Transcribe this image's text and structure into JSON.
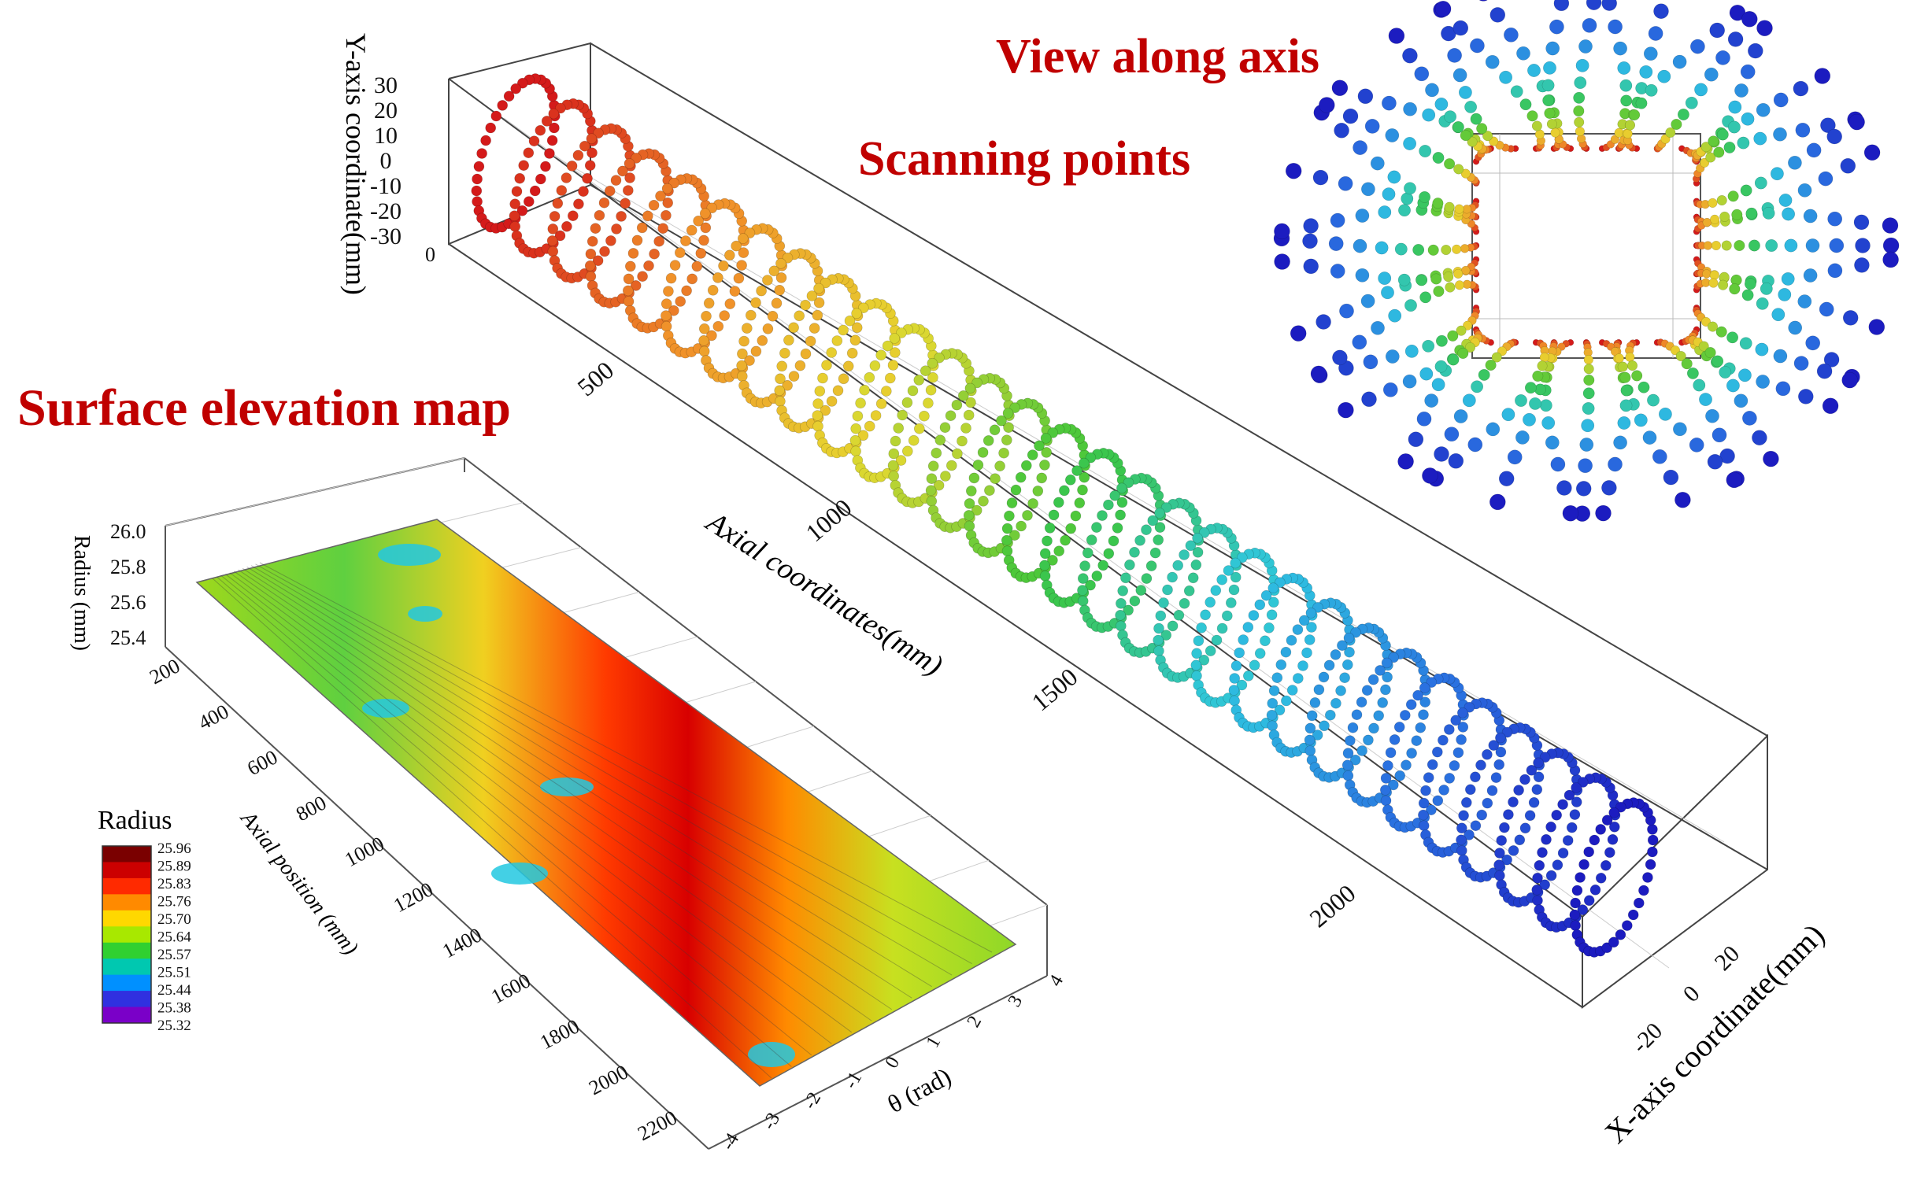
{
  "headings": {
    "view_along_axis": "View along axis",
    "scanning_points": "Scanning points",
    "surface_elevation_map": "Surface elevation map"
  },
  "scatter3d": {
    "y_axis_label": "Y-axis coordinate(mm)",
    "y_ticks": [
      "30",
      "20",
      "10",
      "0",
      "-10",
      "-20",
      "-30"
    ],
    "axial_label": "Axial coordinates(mm)",
    "axial_ticks": [
      "500",
      "1000",
      "1500",
      "2000"
    ],
    "x_axis_label": "X-axis coordinate(mm)",
    "x_ticks": [
      "20",
      "0",
      "-20"
    ],
    "zero_tick": "0",
    "color_scale": [
      "#d41a1a",
      "#f0902a",
      "#e6d830",
      "#3cc63c",
      "#2fc6e0",
      "#2a6ee0",
      "#1c1cc0"
    ]
  },
  "surface": {
    "radius_label": "Radius (mm)",
    "radius_ticks": [
      "26.0",
      "25.8",
      "25.6",
      "25.4"
    ],
    "axial_label": "Axial position (mm)",
    "axial_ticks": [
      "200",
      "400",
      "600",
      "800",
      "1000",
      "1200",
      "1400",
      "1600",
      "1800",
      "2000",
      "2200"
    ],
    "theta_label": "θ (rad)",
    "theta_ticks": [
      "4",
      "3",
      "2",
      "1",
      "0",
      "-1",
      "-2",
      "-3",
      "-4"
    ]
  },
  "legend": {
    "title": "Radius",
    "values": [
      "25.96",
      "25.89",
      "25.83",
      "25.76",
      "25.70",
      "25.64",
      "25.57",
      "25.51",
      "25.44",
      "25.38",
      "25.32"
    ],
    "colors": [
      "#7a0000",
      "#cc0000",
      "#ff2a00",
      "#ff8a00",
      "#ffd800",
      "#a8e800",
      "#30d030",
      "#00c8b0",
      "#0090ff",
      "#3030e0",
      "#7a00c8"
    ]
  }
}
